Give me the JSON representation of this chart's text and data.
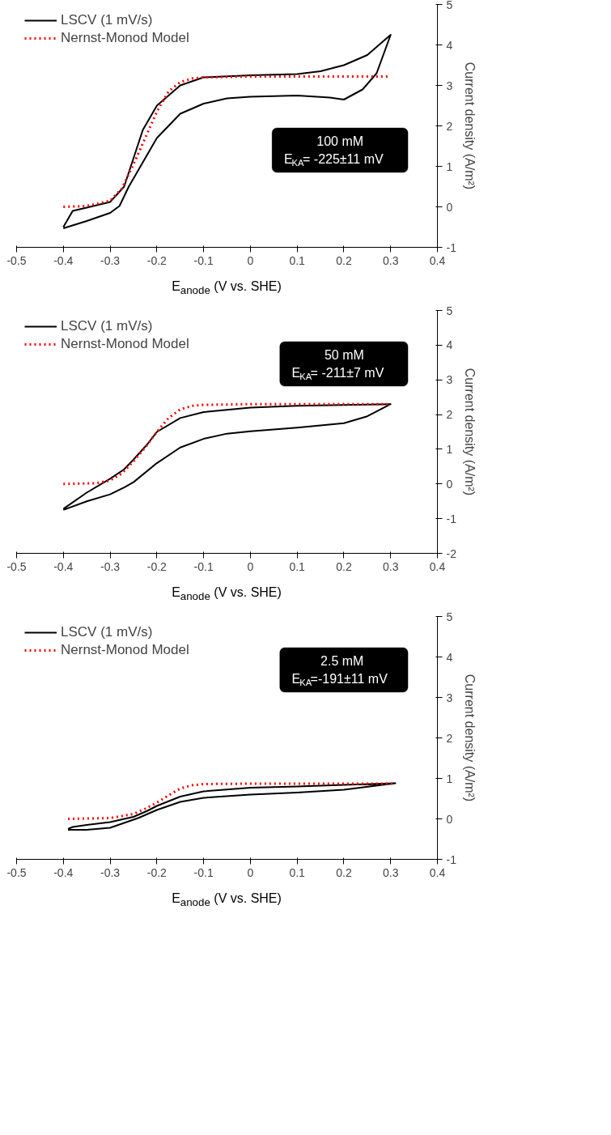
{
  "chart_data": [
    {
      "type": "line",
      "xlabel": "E$_{anode}$ (V vs. SHE)",
      "ylabel": "Current density (A/m²)",
      "annotations": [
        "100 mM",
        "E$_{KA}$= -225±11 mV"
      ],
      "xlim": [
        -0.5,
        0.4
      ],
      "ylim": [
        -1,
        5
      ],
      "xticks": [
        -0.5,
        -0.4,
        -0.3,
        -0.2,
        -0.1,
        0,
        0.1,
        0.2,
        0.3,
        0.4
      ],
      "yticks": [
        -1,
        0,
        1,
        2,
        3,
        4,
        5
      ],
      "grid": false,
      "legend": "top left",
      "marker": "none",
      "series": [
        {
          "name": "LSCV (1 mV/s)",
          "color": "#000000",
          "line_style": "solid",
          "x": [
            -0.4,
            -0.38,
            -0.35,
            -0.3,
            -0.27,
            -0.25,
            -0.23,
            -0.2,
            -0.15,
            -0.1,
            0,
            0.1,
            0.15,
            0.2,
            0.25,
            0.3,
            0.27,
            0.24,
            0.2,
            0.17,
            0.1,
            0,
            -0.05,
            -0.1,
            -0.15,
            -0.2,
            -0.23,
            -0.26,
            -0.28,
            -0.3,
            -0.35,
            -0.4
          ],
          "values": [
            -0.5,
            -0.1,
            -0.02,
            0.12,
            0.5,
            1.2,
            1.9,
            2.5,
            3.0,
            3.2,
            3.25,
            3.28,
            3.35,
            3.5,
            3.75,
            4.25,
            3.3,
            2.9,
            2.65,
            2.7,
            2.75,
            2.72,
            2.68,
            2.55,
            2.3,
            1.7,
            1.1,
            0.5,
            0.02,
            -0.15,
            -0.35,
            -0.53
          ]
        },
        {
          "name": "Nernst-Monod Model",
          "color": "#ff0000",
          "line_style": "dotted",
          "x": [
            -0.4,
            -0.35,
            -0.3,
            -0.275,
            -0.25,
            -0.225,
            -0.2,
            -0.175,
            -0.15,
            -0.125,
            -0.1,
            0,
            0.3
          ],
          "values": [
            0,
            0.02,
            0.15,
            0.45,
            1.05,
            1.7,
            2.35,
            2.85,
            3.08,
            3.17,
            3.2,
            3.22,
            3.22
          ]
        }
      ]
    },
    {
      "type": "line",
      "xlabel": "E$_{anode}$ (V vs. SHE)",
      "ylabel": "Current density (A/m²)",
      "annotations": [
        "50 mM",
        "E$_{KA}$= -211±7 mV"
      ],
      "xlim": [
        -0.5,
        0.4
      ],
      "ylim": [
        -2,
        5
      ],
      "xticks": [
        -0.5,
        -0.4,
        -0.3,
        -0.2,
        -0.1,
        0,
        0.1,
        0.2,
        0.3,
        0.4
      ],
      "yticks": [
        -2,
        -1,
        0,
        1,
        2,
        3,
        4,
        5
      ],
      "grid": false,
      "legend": "top left",
      "marker": "none",
      "series": [
        {
          "name": "LSCV (1 mV/s)",
          "color": "#000000",
          "line_style": "solid",
          "x": [
            -0.4,
            -0.35,
            -0.3,
            -0.27,
            -0.25,
            -0.22,
            -0.2,
            -0.15,
            -0.1,
            0,
            0.1,
            0.3,
            0.25,
            0.2,
            0.1,
            0,
            -0.05,
            -0.1,
            -0.15,
            -0.2,
            -0.25,
            -0.27,
            -0.3,
            -0.35,
            -0.4
          ],
          "values": [
            -0.72,
            -0.25,
            0.15,
            0.42,
            0.7,
            1.15,
            1.5,
            1.9,
            2.07,
            2.2,
            2.25,
            2.3,
            1.95,
            1.75,
            1.62,
            1.52,
            1.45,
            1.3,
            1.05,
            0.6,
            0.05,
            -0.1,
            -0.3,
            -0.5,
            -0.75
          ]
        },
        {
          "name": "Nernst-Monod Model",
          "color": "#ff0000",
          "line_style": "dotted",
          "x": [
            -0.4,
            -0.33,
            -0.3,
            -0.275,
            -0.25,
            -0.225,
            -0.2,
            -0.175,
            -0.15,
            -0.125,
            -0.1,
            0,
            0.3
          ],
          "values": [
            0,
            0.02,
            0.1,
            0.3,
            0.65,
            1.05,
            1.5,
            1.9,
            2.15,
            2.25,
            2.28,
            2.3,
            2.3
          ]
        }
      ]
    },
    {
      "type": "line",
      "xlabel": "E$_{anode}$ (V vs. SHE)",
      "ylabel": "Current density (A/m²)",
      "annotations": [
        "2.5 mM",
        "E$_{KA}$=-191±11 mV"
      ],
      "xlim": [
        -0.5,
        0.4
      ],
      "ylim": [
        -1,
        5
      ],
      "xticks": [
        -0.5,
        -0.4,
        -0.3,
        -0.2,
        -0.1,
        0,
        0.1,
        0.2,
        0.3,
        0.4
      ],
      "yticks": [
        -1,
        0,
        1,
        2,
        3,
        4,
        5
      ],
      "grid": false,
      "legend": "top left",
      "marker": "none",
      "series": [
        {
          "name": "LSCV (1 mV/s)",
          "color": "#000000",
          "line_style": "solid",
          "x": [
            -0.39,
            -0.38,
            -0.35,
            -0.3,
            -0.25,
            -0.22,
            -0.2,
            -0.15,
            -0.1,
            0,
            0.1,
            0.2,
            0.31,
            0.2,
            0.1,
            0,
            -0.1,
            -0.15,
            -0.2,
            -0.24,
            -0.27,
            -0.3,
            -0.35,
            -0.39
          ],
          "values": [
            -0.25,
            -0.2,
            -0.15,
            -0.08,
            0.05,
            0.2,
            0.32,
            0.55,
            0.68,
            0.77,
            0.8,
            0.84,
            0.88,
            0.72,
            0.65,
            0.6,
            0.52,
            0.42,
            0.22,
            0.02,
            -0.1,
            -0.22,
            -0.27,
            -0.27
          ]
        },
        {
          "name": "Nernst-Monod Model",
          "color": "#ff0000",
          "line_style": "dotted",
          "x": [
            -0.39,
            -0.3,
            -0.25,
            -0.225,
            -0.2,
            -0.175,
            -0.15,
            -0.125,
            -0.1,
            0,
            0.31
          ],
          "values": [
            0,
            0.02,
            0.12,
            0.25,
            0.4,
            0.58,
            0.75,
            0.83,
            0.86,
            0.87,
            0.87
          ]
        }
      ]
    }
  ]
}
